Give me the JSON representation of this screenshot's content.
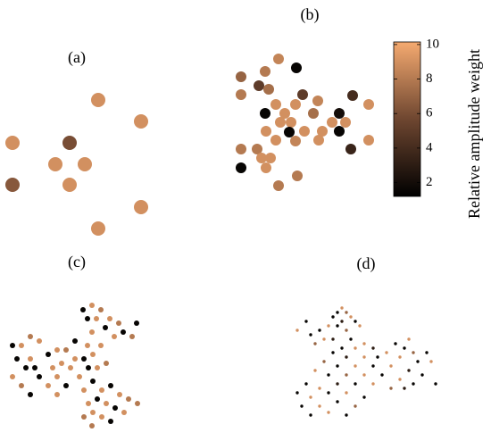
{
  "chart_data": [
    {
      "type": "scatter",
      "label": "(a)",
      "xlim": [
        0,
        180
      ],
      "ylim": [
        0,
        170
      ],
      "marker_size": 8,
      "x": [
        110,
        158,
        14,
        78,
        62,
        95,
        14,
        78,
        158,
        110
      ],
      "y": [
        158,
        134,
        110,
        110,
        86,
        86,
        63,
        63,
        38,
        14
      ],
      "values": [
        9,
        9,
        9,
        6,
        9,
        9,
        6.5,
        9,
        9,
        9
      ]
    },
    {
      "type": "scatter",
      "label": "(b)",
      "xlim": [
        0,
        170
      ],
      "ylim": [
        0,
        165
      ],
      "marker_size": 6,
      "x": [
        57,
        77,
        15,
        42,
        35,
        46,
        15,
        84,
        140,
        54,
        101,
        158,
        42,
        64,
        76,
        125,
        96,
        71,
        117,
        132,
        43,
        59,
        86,
        106,
        125,
        69,
        33,
        54,
        76,
        102,
        158,
        138,
        15,
        38,
        48,
        15,
        43,
        78,
        57
      ],
      "y": [
        154,
        144,
        134,
        140,
        124,
        120,
        114,
        114,
        113,
        103,
        107,
        103,
        93,
        93,
        103,
        93,
        93,
        83,
        83,
        83,
        73,
        83,
        73,
        73,
        73,
        72,
        53,
        63,
        62,
        63,
        63,
        53,
        53,
        43,
        43,
        32,
        32,
        23,
        12
      ],
      "values": [
        8.5,
        1.5,
        7,
        8,
        5,
        7.5,
        8,
        5,
        4,
        9,
        8.5,
        9,
        1.5,
        9,
        9,
        2,
        7.5,
        9,
        9,
        9,
        9,
        9,
        9,
        9,
        1.5,
        1.5,
        8,
        9,
        8.5,
        9,
        9,
        3.5,
        8,
        9,
        9,
        1.5,
        9,
        8,
        8
      ],
      "colorbar": {
        "label": "Relative amplitude weight",
        "lim": [
          1.2,
          10.15
        ],
        "ticks": [
          2,
          4,
          6,
          8,
          10
        ]
      }
    },
    {
      "type": "scatter",
      "label": "(c)",
      "xlim": [
        0,
        170
      ],
      "ylim": [
        0,
        155
      ],
      "marker_size": 3,
      "x": [
        93,
        103,
        113,
        98,
        108,
        123,
        133,
        153,
        118,
        103,
        138,
        148,
        128,
        34,
        44,
        14,
        24,
        84,
        98,
        113,
        64,
        74,
        54,
        34,
        19,
        84,
        94,
        104,
        29,
        39,
        59,
        69,
        79,
        99,
        109,
        119,
        14,
        44,
        64,
        89,
        104,
        24,
        54,
        74,
        94,
        114,
        124,
        34,
        64,
        134,
        109,
        144,
        99,
        119,
        154,
        129,
        104,
        139,
        94,
        114,
        124,
        103
      ],
      "y": [
        138,
        143,
        138,
        128,
        128,
        128,
        123,
        123,
        118,
        113,
        113,
        108,
        108,
        108,
        103,
        98,
        98,
        103,
        98,
        98,
        93,
        93,
        88,
        83,
        83,
        83,
        83,
        88,
        73,
        73,
        73,
        78,
        73,
        73,
        73,
        78,
        63,
        63,
        63,
        63,
        58,
        53,
        53,
        53,
        48,
        48,
        53,
        43,
        43,
        43,
        38,
        38,
        33,
        33,
        33,
        28,
        23,
        23,
        18,
        18,
        13,
        8
      ],
      "values": [
        1.5,
        9,
        8,
        1.5,
        9,
        9,
        8,
        1.5,
        1.5,
        9,
        1.5,
        8,
        9,
        8,
        9,
        1.5,
        9,
        1.5,
        9,
        9,
        9,
        8,
        1.5,
        9,
        1.5,
        9,
        1.5,
        9,
        1.5,
        1.5,
        9,
        9,
        9,
        1.5,
        9,
        8,
        9,
        1.5,
        9,
        9,
        1.5,
        8,
        9,
        1.5,
        9,
        9,
        1.5,
        1.5,
        9,
        9,
        1.5,
        8,
        9,
        9,
        8,
        1.5,
        9,
        9,
        8,
        9,
        1.5,
        8
      ]
    },
    {
      "type": "scatter",
      "label": "(d)",
      "xlim": [
        0,
        170
      ],
      "ylim": [
        0,
        135
      ],
      "marker_size": 1.7,
      "x": [
        58,
        53,
        63,
        48,
        68,
        58,
        73,
        43,
        53,
        78,
        63,
        33,
        18,
        8,
        23,
        38,
        48,
        68,
        83,
        28,
        58,
        73,
        93,
        118,
        133,
        128,
        138,
        153,
        108,
        48,
        63,
        83,
        98,
        123,
        143,
        158,
        38,
        53,
        73,
        93,
        113,
        133,
        148,
        163,
        28,
        43,
        63,
        83,
        103,
        123,
        138,
        18,
        33,
        53,
        73,
        93,
        113,
        8,
        23,
        43,
        63,
        83,
        128,
        13,
        33,
        53,
        73,
        23,
        43,
        63
      ],
      "y": [
        125,
        120,
        120,
        115,
        115,
        110,
        110,
        105,
        105,
        105,
        100,
        100,
        110,
        100,
        95,
        90,
        90,
        90,
        85,
        85,
        80,
        80,
        80,
        85,
        90,
        80,
        75,
        75,
        75,
        75,
        70,
        70,
        70,
        70,
        65,
        65,
        65,
        60,
        60,
        60,
        60,
        55,
        50,
        40,
        55,
        50,
        50,
        50,
        50,
        45,
        40,
        40,
        35,
        40,
        40,
        40,
        35,
        30,
        25,
        30,
        30,
        25,
        35,
        15,
        15,
        20,
        15,
        5,
        8,
        5
      ],
      "values": [
        9,
        1.5,
        7,
        1.5,
        9,
        3,
        1.5,
        9,
        1.5,
        9,
        7,
        1.5,
        1.5,
        9,
        1.5,
        9,
        3,
        1.5,
        9,
        7,
        1.5,
        9,
        3,
        1.5,
        9,
        1.5,
        7,
        1.5,
        9,
        1.5,
        3,
        9,
        1.5,
        9,
        1.5,
        9,
        7,
        1.5,
        9,
        1.5,
        9,
        3,
        1.5,
        1.5,
        9,
        1.5,
        7,
        9,
        1.5,
        9,
        1.5,
        1.5,
        9,
        3,
        1.5,
        9,
        7,
        1.5,
        9,
        1.5,
        9,
        1.5,
        3,
        1.5,
        9,
        1.5,
        7,
        1.5,
        9,
        1.5
      ]
    }
  ],
  "colormap": [
    "#000000",
    "#6e4630",
    "#f5aa70"
  ]
}
